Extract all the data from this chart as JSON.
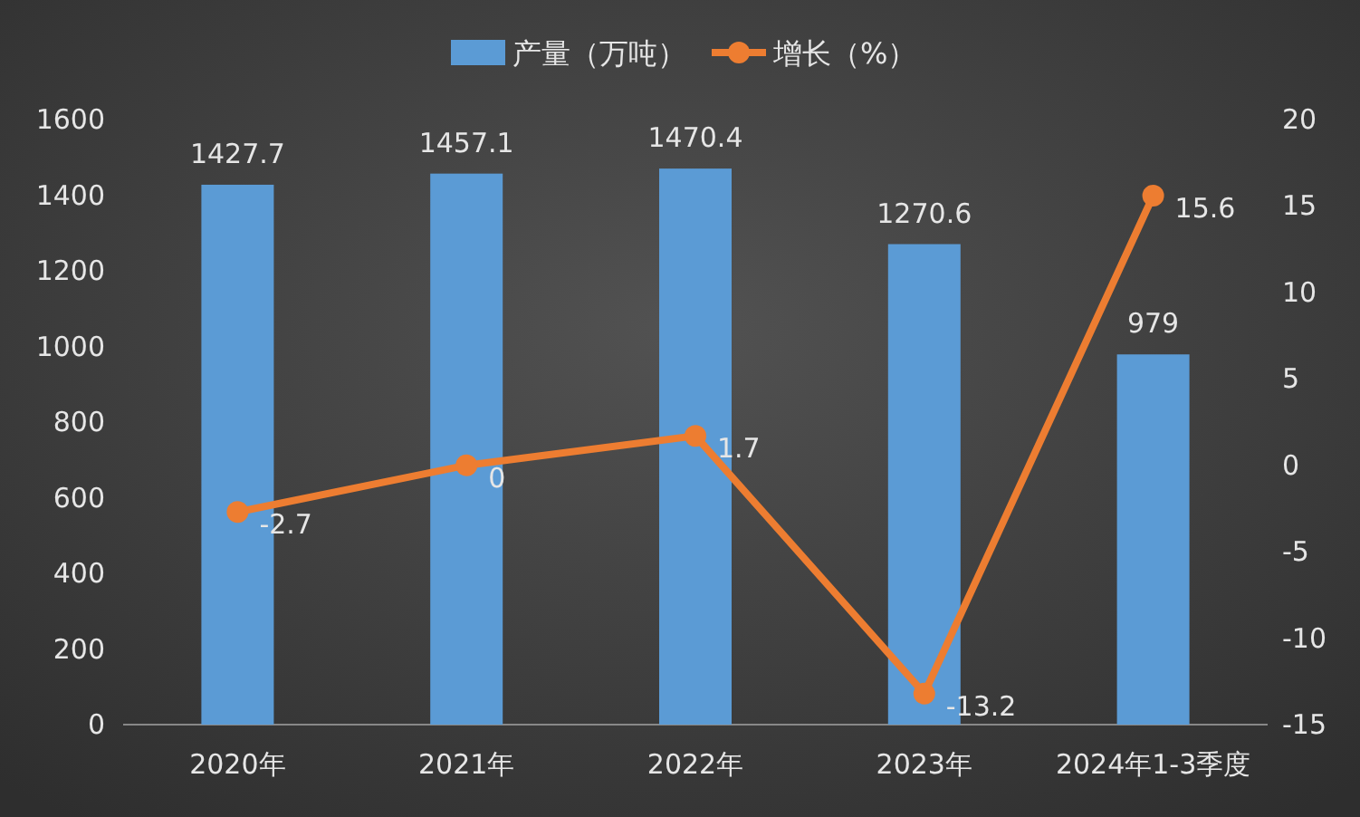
{
  "chart_data": {
    "type": "bar",
    "categories": [
      "2020年",
      "2021年",
      "2022年",
      "2023年",
      "2024年1-3季度"
    ],
    "series": [
      {
        "name": "产量（万吨）",
        "color": "#5b9bd5",
        "values": [
          1427.7,
          1457.1,
          1470.4,
          1270.6,
          979
        ]
      },
      {
        "name": "增长（%）",
        "type": "line",
        "axis": "y2",
        "color": "#ed7d31",
        "values": [
          -2.7,
          0,
          1.7,
          -13.2,
          15.6
        ]
      }
    ],
    "ylim": [
      0,
      1600
    ],
    "yticks": [
      0,
      200,
      400,
      600,
      800,
      1000,
      1200,
      1400,
      1600
    ],
    "y2lim": [
      -15,
      20
    ],
    "y2ticks": [
      -15,
      -10,
      -5,
      0,
      5,
      10,
      15,
      20
    ],
    "data_labels": true,
    "legend": "top",
    "marker": "circle",
    "grid": false
  }
}
